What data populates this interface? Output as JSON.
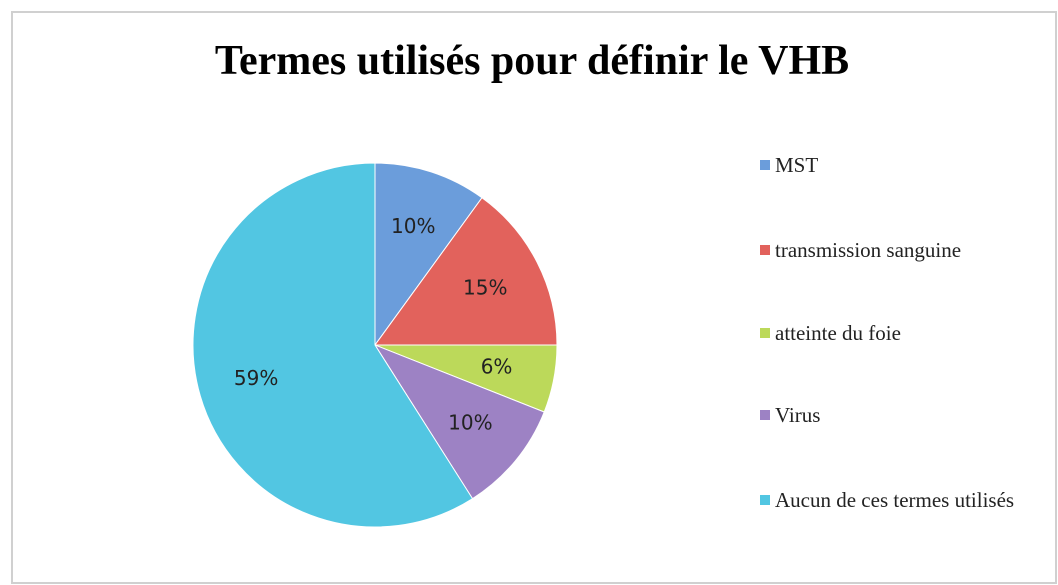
{
  "chart_data": {
    "type": "pie",
    "title": "Termes utilisés pour définir le VHB",
    "categories": [
      "MST",
      "transmission sanguine",
      "atteinte du foie",
      "Virus",
      "Aucun de ces termes utilisés"
    ],
    "values": [
      10,
      15,
      6,
      10,
      59
    ],
    "value_labels": [
      "10%",
      "15%",
      "6%",
      "10%",
      "59%"
    ],
    "colors": [
      "#6b9ddb",
      "#e2625c",
      "#bcd95a",
      "#9d82c4",
      "#52c6e2"
    ],
    "legend": "right"
  }
}
